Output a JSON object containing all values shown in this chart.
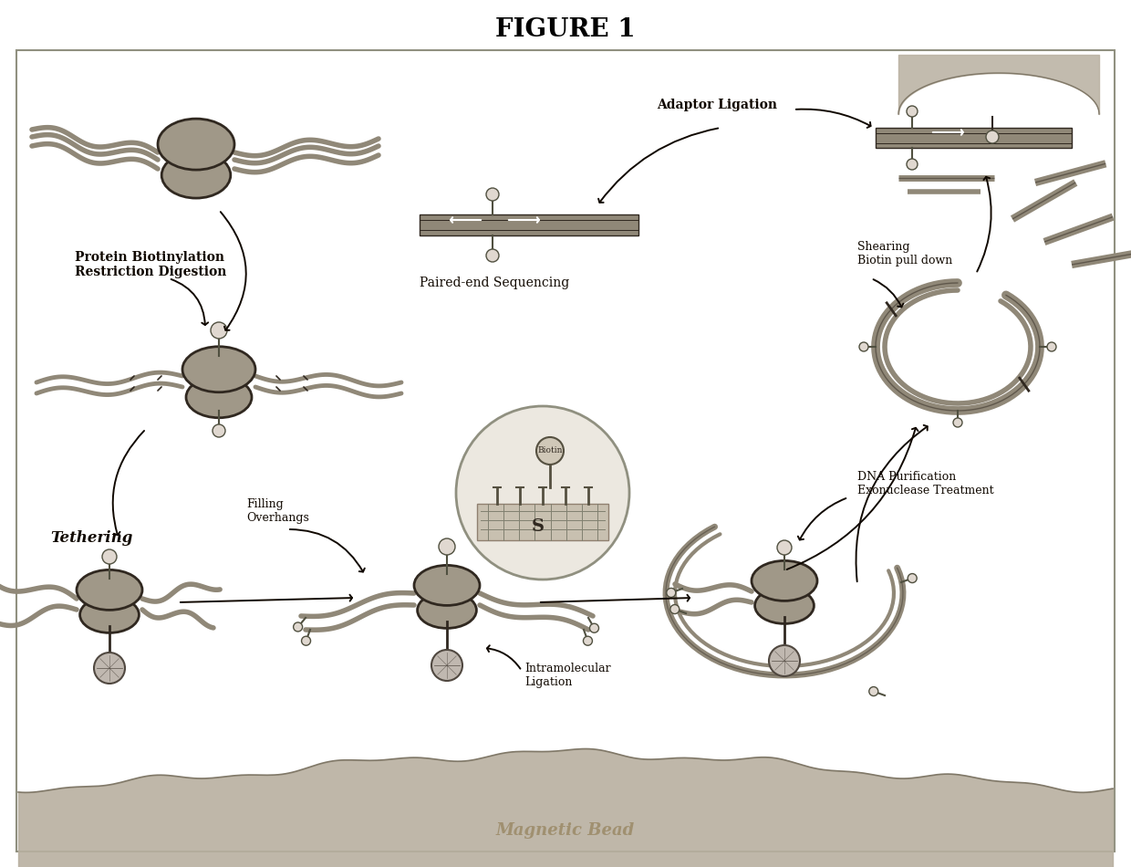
{
  "title": "FIGURE 1",
  "title_fontsize": 20,
  "title_fontweight": "bold",
  "title_fontfamily": "serif",
  "bg_color": "#ffffff",
  "fig_width": 12.4,
  "fig_height": 9.5,
  "labels": {
    "protein_biotinylation": "Protein Biotinylation\nRestriction Digestion",
    "tethering": "Tethering",
    "filling_overhangs": "Filling\nOverhangs",
    "intramolecular_ligation": "Intramolecular\nLigation",
    "dna_purification": "DNA Purification\nExonuclease Treatment",
    "shearing_biotin": "Shearing\nBiotin pull down",
    "adaptor_ligation": "Adaptor Ligation",
    "paired_end_sequencing": "Paired-end Sequencing",
    "magnetic_bead": "Magnetic Bead",
    "biotin": "Biotin"
  },
  "nucleosome_color": "#a09888",
  "nucleosome_edge_color": "#302820",
  "dna_color": "#908878",
  "dna_edge_color": "#302820",
  "bead_color": "#c0b8b0",
  "bead_edge_color": "#504840",
  "surface_color": "#b8b0a0",
  "surface_edge_color": "#807868",
  "arrow_color": "#100800",
  "text_color": "#100800",
  "label_fontsize": 9,
  "label_fontfamily": "serif"
}
